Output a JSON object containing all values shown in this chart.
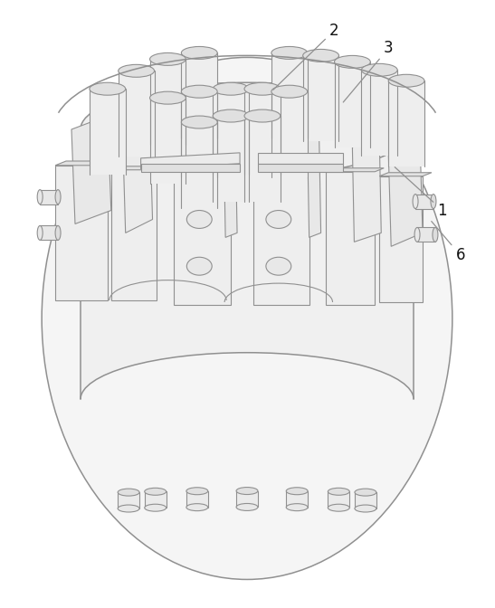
{
  "background_color": "#ffffff",
  "line_color": "#909090",
  "fill_white": "#ffffff",
  "fill_light": "#f2f2f2",
  "fill_mid": "#e8e8e8",
  "fill_dark": "#d8d8d8",
  "figsize": [
    5.47,
    6.72
  ],
  "dpi": 100
}
